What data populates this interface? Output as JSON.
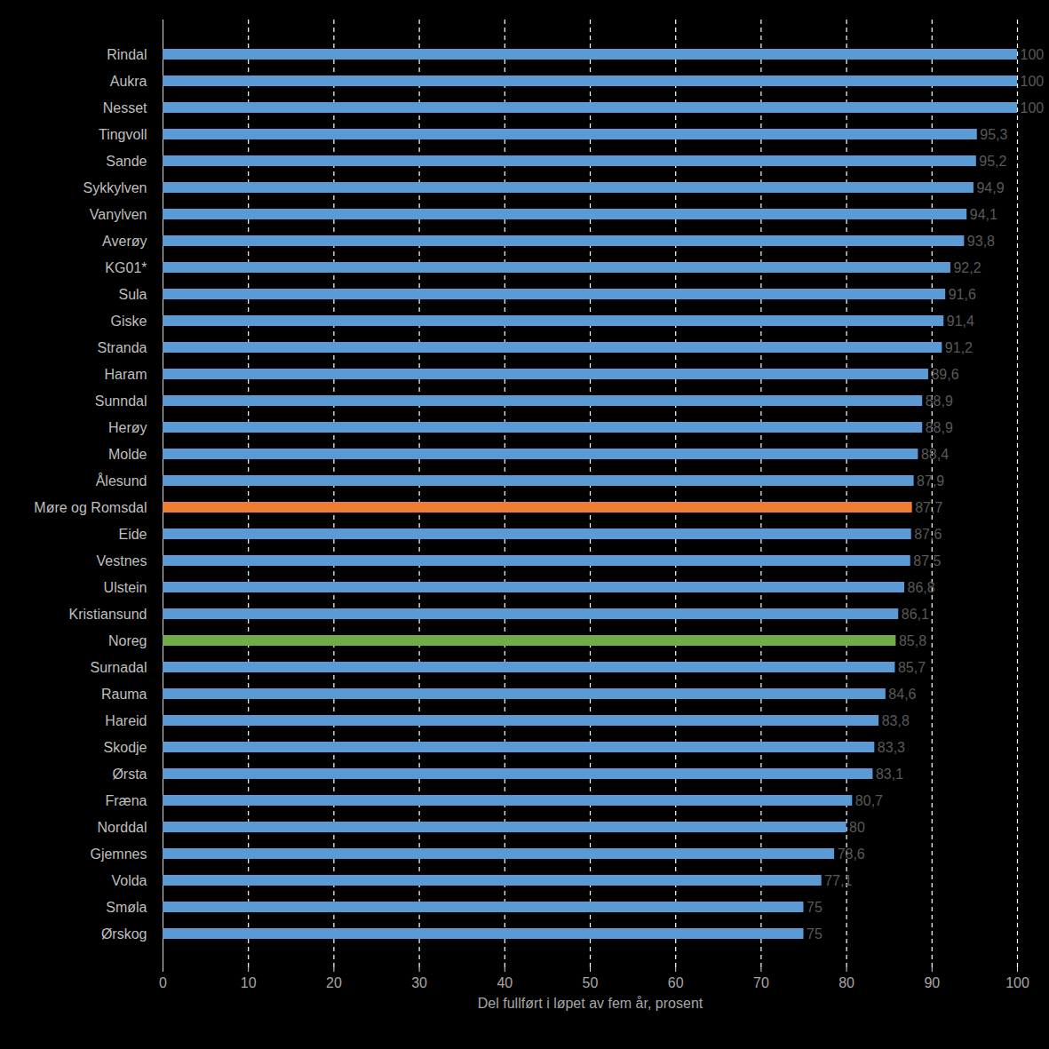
{
  "chart_data": {
    "type": "bar",
    "orientation": "horizontal",
    "xlabel": "Del fullført i løpet av fem år, prosent",
    "categories": [
      "Rindal",
      "Aukra",
      "Nesset",
      "Tingvoll",
      "Sande",
      "Sykkylven",
      "Vanylven",
      "Averøy",
      "KG01*",
      "Sula",
      "Giske",
      "Stranda",
      "Haram",
      "Sunndal",
      "Herøy",
      "Molde",
      "Ålesund",
      "Møre og Romsdal",
      "Eide",
      "Vestnes",
      "Ulstein",
      "Kristiansund",
      "Noreg",
      "Surnadal",
      "Rauma",
      "Hareid",
      "Skodje",
      "Ørsta",
      "Fræna",
      "Norddal",
      "Gjemnes",
      "Volda",
      "Smøla",
      "Ørskog"
    ],
    "values": [
      100,
      100,
      100,
      95.3,
      95.2,
      94.9,
      94.1,
      93.8,
      92.2,
      91.6,
      91.4,
      91.2,
      89.6,
      88.9,
      88.9,
      88.4,
      87.9,
      87.7,
      87.6,
      87.5,
      86.8,
      86.1,
      85.8,
      85.7,
      84.6,
      83.8,
      83.3,
      83.1,
      80.7,
      80,
      78.6,
      77.1,
      75,
      75
    ],
    "value_labels": [
      "100",
      "100",
      "100",
      "95,3",
      "95,2",
      "94,9",
      "94,1",
      "93,8",
      "92,2",
      "91,6",
      "91,4",
      "91,2",
      "89,6",
      "88,9",
      "88,9",
      "88,4",
      "87,9",
      "87,7",
      "87,6",
      "87,5",
      "86,8",
      "86,1",
      "85,8",
      "85,7",
      "84,6",
      "83,8",
      "83,3",
      "83,1",
      "80,7",
      "80",
      "78,6",
      "77,1",
      "75",
      "75"
    ],
    "colors": [
      "#5b9bd5",
      "#5b9bd5",
      "#5b9bd5",
      "#5b9bd5",
      "#5b9bd5",
      "#5b9bd5",
      "#5b9bd5",
      "#5b9bd5",
      "#5b9bd5",
      "#5b9bd5",
      "#5b9bd5",
      "#5b9bd5",
      "#5b9bd5",
      "#5b9bd5",
      "#5b9bd5",
      "#5b9bd5",
      "#5b9bd5",
      "#ed7d31",
      "#5b9bd5",
      "#5b9bd5",
      "#5b9bd5",
      "#5b9bd5",
      "#70ad47",
      "#5b9bd5",
      "#5b9bd5",
      "#5b9bd5",
      "#5b9bd5",
      "#5b9bd5",
      "#5b9bd5",
      "#5b9bd5",
      "#5b9bd5",
      "#5b9bd5",
      "#5b9bd5",
      "#5b9bd5"
    ],
    "xlim": [
      0,
      100
    ],
    "xticks": [
      0,
      10,
      20,
      30,
      40,
      50,
      60,
      70,
      80,
      90,
      100
    ],
    "grid": true,
    "data_labels": true
  }
}
